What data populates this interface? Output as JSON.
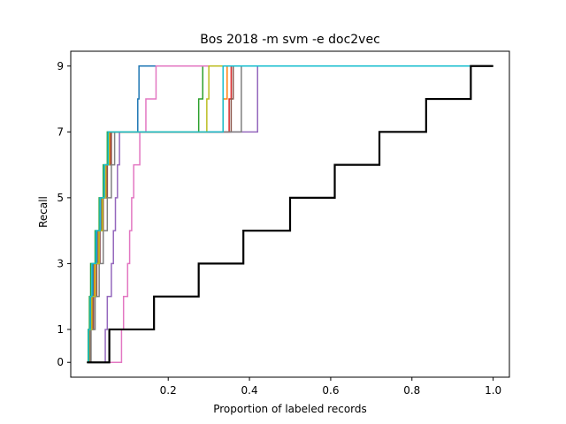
{
  "chart_data": {
    "type": "line",
    "step": "post",
    "title": "Bos 2018 -m svm -e doc2vec",
    "xlabel": "Proportion of labeled records",
    "ylabel": "Recall",
    "xlim": [
      -0.04,
      1.04
    ],
    "ylim": [
      -0.45,
      9.45
    ],
    "xticks": [
      0.2,
      0.4,
      0.6,
      0.8,
      1.0
    ],
    "xtick_labels": [
      "0.2",
      "0.4",
      "0.6",
      "0.8",
      "1.0"
    ],
    "yticks": [
      0,
      1,
      3,
      5,
      7,
      9
    ],
    "ytick_labels": [
      "0",
      "1",
      "3",
      "5",
      "7",
      "9"
    ],
    "grid": false,
    "series": [
      {
        "color": "#1f77b4",
        "x": [
          0.0,
          0.005,
          0.01,
          0.015,
          0.025,
          0.035,
          0.045,
          0.055,
          0.12,
          0.125,
          0.128,
          0.385,
          1.0
        ],
        "y": [
          0,
          1,
          2,
          3,
          4,
          5,
          6,
          7,
          7,
          8,
          9,
          9,
          9
        ]
      },
      {
        "color": "#ff7f0e",
        "x": [
          0.0,
          0.006,
          0.012,
          0.018,
          0.028,
          0.037,
          0.047,
          0.055,
          0.33,
          0.335,
          0.345,
          1.0
        ],
        "y": [
          0,
          1,
          2,
          3,
          4,
          5,
          6,
          7,
          7,
          8,
          9,
          9
        ]
      },
      {
        "color": "#2ca02c",
        "x": [
          0.0,
          0.003,
          0.006,
          0.009,
          0.02,
          0.03,
          0.04,
          0.05,
          0.27,
          0.275,
          0.285,
          1.0
        ],
        "y": [
          0,
          1,
          2,
          3,
          4,
          5,
          6,
          7,
          7,
          8,
          9,
          9
        ]
      },
      {
        "color": "#d62728",
        "x": [
          0.0,
          0.007,
          0.014,
          0.02,
          0.03,
          0.04,
          0.05,
          0.058,
          0.345,
          0.35,
          0.355,
          1.0
        ],
        "y": [
          0,
          1,
          2,
          3,
          4,
          5,
          6,
          7,
          7,
          8,
          9,
          9
        ]
      },
      {
        "color": "#9467bd",
        "x": [
          0.0,
          0.045,
          0.05,
          0.06,
          0.065,
          0.07,
          0.075,
          0.08,
          0.415,
          0.42,
          1.0
        ],
        "y": [
          0,
          1,
          2,
          3,
          4,
          5,
          6,
          7,
          7,
          9,
          9
        ]
      },
      {
        "color": "#8c564b",
        "x": [
          0.0,
          0.008,
          0.016,
          0.024,
          0.032,
          0.04,
          0.05,
          0.06,
          0.35,
          0.355,
          0.36,
          1.0
        ],
        "y": [
          0,
          1,
          2,
          3,
          4,
          5,
          6,
          7,
          7,
          8,
          9,
          9
        ]
      },
      {
        "color": "#e377c2",
        "x": [
          0.0,
          0.085,
          0.09,
          0.1,
          0.105,
          0.11,
          0.115,
          0.13,
          0.135,
          0.145,
          0.165,
          0.17,
          1.0
        ],
        "y": [
          0,
          1,
          2,
          3,
          4,
          5,
          6,
          7,
          7,
          8,
          8,
          9,
          9
        ]
      },
      {
        "color": "#7f7f7f",
        "x": [
          0.0,
          0.01,
          0.02,
          0.03,
          0.04,
          0.05,
          0.06,
          0.068,
          0.375,
          0.38,
          1.0
        ],
        "y": [
          0,
          1,
          2,
          3,
          4,
          5,
          6,
          7,
          7,
          9,
          9
        ]
      },
      {
        "color": "#bcbd22",
        "x": [
          0.0,
          0.005,
          0.012,
          0.02,
          0.03,
          0.038,
          0.046,
          0.055,
          0.29,
          0.295,
          0.3,
          1.0
        ],
        "y": [
          0,
          1,
          2,
          3,
          4,
          5,
          6,
          7,
          7,
          8,
          9,
          9
        ]
      },
      {
        "color": "#17becf",
        "x": [
          0.0,
          0.004,
          0.008,
          0.012,
          0.022,
          0.032,
          0.042,
          0.052,
          0.33,
          0.335,
          1.0
        ],
        "y": [
          0,
          1,
          2,
          3,
          4,
          5,
          6,
          7,
          7,
          9,
          9
        ]
      },
      {
        "color": "#000000",
        "width": "thick",
        "x": [
          0.0,
          0.055,
          0.165,
          0.275,
          0.385,
          0.5,
          0.61,
          0.72,
          0.835,
          0.945,
          1.0
        ],
        "y": [
          0,
          1,
          2,
          3,
          4,
          5,
          6,
          7,
          8,
          9,
          9
        ]
      }
    ]
  }
}
